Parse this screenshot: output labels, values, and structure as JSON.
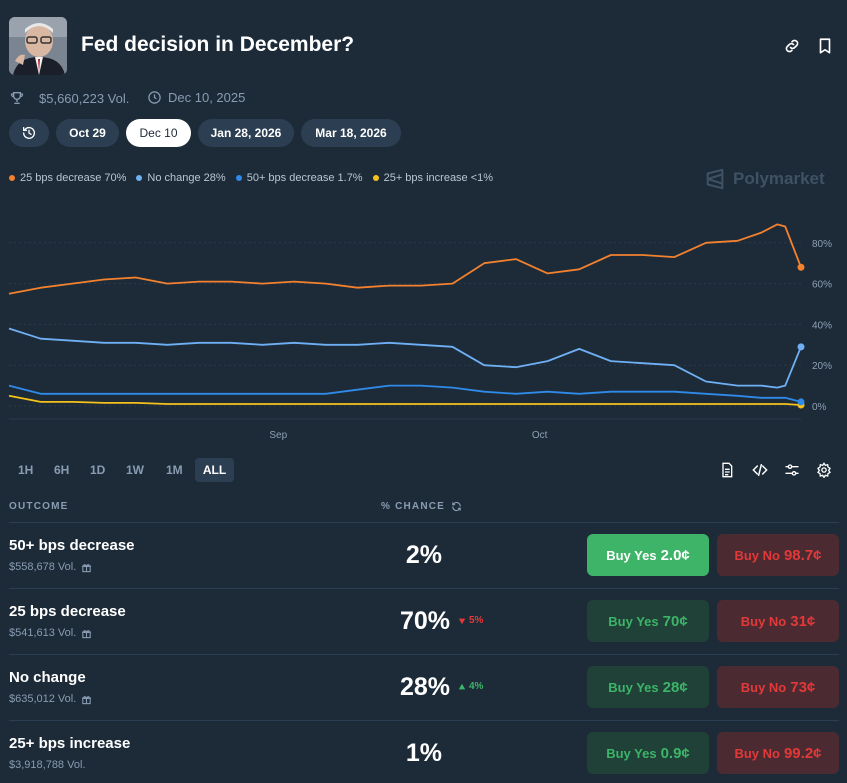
{
  "header": {
    "title": "Fed decision in December?",
    "volume": "$5,660,223 Vol.",
    "end_date": "Dec 10, 2025"
  },
  "date_pills": [
    {
      "label": "Oct 29"
    },
    {
      "label": "Dec 10"
    },
    {
      "label": "Jan 28, 2026"
    },
    {
      "label": "Mar 18, 2026"
    }
  ],
  "legend": [
    {
      "label": "25 bps decrease 70%",
      "color": "#f3812e"
    },
    {
      "label": "No change 28%",
      "color": "#6fb0f5"
    },
    {
      "label": "50+ bps decrease 1.7%",
      "color": "#2f8ae8"
    },
    {
      "label": "25+ bps increase <1%",
      "color": "#f6c21a"
    }
  ],
  "brand": "Polymarket",
  "chart_data": {
    "type": "line",
    "x": [
      0,
      4,
      8,
      12,
      16,
      20,
      24,
      28,
      32,
      36,
      40,
      44,
      48,
      52,
      56,
      60,
      64,
      68,
      72,
      76,
      80,
      84,
      88,
      92,
      95,
      97,
      98,
      100
    ],
    "x_tick_labels": [
      {
        "label": "Sep",
        "at": 34
      },
      {
        "label": "Oct",
        "at": 67
      }
    ],
    "ylim": [
      0,
      100
    ],
    "y_ticks": [
      "0%",
      "20%",
      "40%",
      "60%",
      "80%"
    ],
    "series": [
      {
        "name": "25 bps decrease",
        "color": "#f3812e",
        "values": [
          55,
          58,
          60,
          62,
          63,
          60,
          61,
          61,
          60,
          61,
          60,
          58,
          59,
          59,
          60,
          70,
          72,
          65,
          67,
          74,
          74,
          73,
          80,
          81,
          85,
          89,
          88,
          68
        ]
      },
      {
        "name": "No change",
        "color": "#6fb0f5",
        "values": [
          38,
          33,
          32,
          31,
          31,
          30,
          31,
          31,
          30,
          31,
          30,
          30,
          31,
          30,
          29,
          20,
          19,
          22,
          28,
          22,
          21,
          20,
          12,
          10,
          10,
          9,
          10,
          29
        ]
      },
      {
        "name": "50+ bps decrease",
        "color": "#2f8ae8",
        "values": [
          10,
          6,
          6,
          6,
          6,
          6,
          6,
          6,
          6,
          6,
          6,
          8,
          10,
          10,
          9,
          7,
          6,
          7,
          6,
          7,
          7,
          7,
          6,
          5,
          4,
          4,
          4,
          2
        ]
      },
      {
        "name": "25+ bps increase",
        "color": "#f6c21a",
        "values": [
          5,
          2,
          2,
          1.5,
          1.5,
          1,
          1,
          1,
          1,
          1,
          1,
          1,
          1,
          1,
          1,
          1,
          1,
          1,
          1,
          1,
          1,
          1,
          1,
          1,
          1,
          1,
          1,
          0.5
        ]
      }
    ]
  },
  "range_tabs": [
    "1H",
    "6H",
    "1D",
    "1W",
    "1M",
    "ALL"
  ],
  "table": {
    "col_outcome": "OUTCOME",
    "col_chance": "% CHANCE",
    "rows": [
      {
        "name": "50+ bps decrease",
        "volume": "$558,678 Vol.",
        "chance": "2%",
        "delta": "",
        "yes_label": "Buy Yes",
        "yes_price": "2.0¢",
        "no_label": "Buy No",
        "no_price": "98.7¢"
      },
      {
        "name": "25 bps decrease",
        "volume": "$541,613 Vol.",
        "chance": "70%",
        "delta": "5%",
        "yes_label": "Buy Yes",
        "yes_price": "70¢",
        "no_label": "Buy No",
        "no_price": "31¢"
      },
      {
        "name": "No change",
        "volume": "$635,012 Vol.",
        "chance": "28%",
        "delta": "4%",
        "yes_label": "Buy Yes",
        "yes_price": "28¢",
        "no_label": "Buy No",
        "no_price": "73¢"
      },
      {
        "name": "25+ bps increase",
        "volume": "$3,918,788 Vol.",
        "chance": "1%",
        "delta": "",
        "yes_label": "Buy Yes",
        "yes_price": "0.9¢",
        "no_label": "Buy No",
        "no_price": "99.2¢"
      }
    ]
  }
}
